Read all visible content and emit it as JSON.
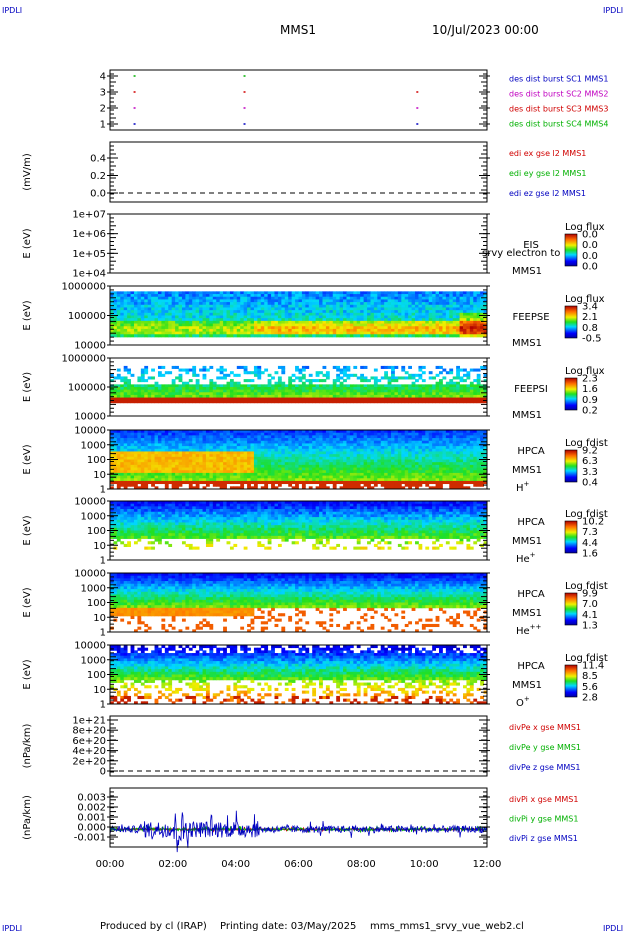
{
  "header": {
    "left_corner": "IPDLI",
    "right_corner": "IPDLI",
    "mission": "MMS1",
    "datetime": "10/Jul/2023 00:00"
  },
  "footer": {
    "left_corner": "IPDLI",
    "right_corner": "IPDLI",
    "credit": "Produced by cl (IRAP)",
    "print_label": "Printing date: 03/May/2025",
    "script": "mms_mms1_srvy_vue_web2.cl"
  },
  "colors": {
    "red": "#d00000",
    "green": "#00b000",
    "blue": "#0000c0",
    "magenta": "#c000c0"
  },
  "chart_data": [
    {
      "type": "scatter",
      "panel": "burst",
      "y_ticks": [
        "4",
        "3",
        "2",
        "1"
      ],
      "legend": [
        {
          "text": "des dist burst SC1 MMS1",
          "color": "#0000c0"
        },
        {
          "text": "des dist burst SC2 MMS2",
          "color": "#c000c0"
        },
        {
          "text": "des dist burst SC3 MMS3",
          "color": "#d00000"
        },
        {
          "text": "des dist burst SC4 MMS4",
          "color": "#00b000"
        }
      ],
      "burst_times": [
        "00:45",
        "04:15",
        "09:45"
      ]
    },
    {
      "type": "line",
      "panel": "edi",
      "ylabel": "(mV/m)",
      "y_ticks": [
        "0.4",
        "0.2",
        "0.0"
      ],
      "legend": [
        {
          "text": "edi ex gse l2 MMS1",
          "color": "#d00000"
        },
        {
          "text": "edi ey gse l2 MMS1",
          "color": "#00b000"
        },
        {
          "text": "edi ez gse l2 MMS1",
          "color": "#0000c0"
        }
      ]
    },
    {
      "type": "heatmap",
      "panel": "eis",
      "ylabel": "E (eV)",
      "y_ticks": [
        "1e+07",
        "1e+06",
        "1e+05",
        "1e+04"
      ],
      "labels": [
        "EIS",
        "MMS1"
      ],
      "overlay": "srvy electron to",
      "colorbar_title": "Log flux",
      "colorbar_values": [
        "0.0",
        "0.0",
        "0.0",
        "0.0"
      ]
    },
    {
      "type": "heatmap",
      "panel": "feepse",
      "ylabel": "E (eV)",
      "y_ticks": [
        "1000000",
        "100000",
        "10000"
      ],
      "labels": [
        "FEEPSE",
        "MMS1"
      ],
      "colorbar_title": "Log flux",
      "colorbar_values": [
        "3.4",
        "2.1",
        "0.8",
        "-0.5"
      ]
    },
    {
      "type": "heatmap",
      "panel": "feepsi",
      "ylabel": "E (eV)",
      "y_ticks": [
        "1000000",
        "100000",
        "10000"
      ],
      "labels": [
        "FEEPSI",
        "MMS1"
      ],
      "colorbar_title": "Log flux",
      "colorbar_values": [
        "2.3",
        "1.6",
        "0.9",
        "0.2"
      ]
    },
    {
      "type": "heatmap",
      "panel": "hpca_h",
      "ylabel": "E (eV)",
      "y_ticks": [
        "10000",
        "1000",
        "100",
        "10",
        "1"
      ],
      "labels": [
        "HPCA",
        "MMS1"
      ],
      "species": "H",
      "species_sup": "+",
      "colorbar_title": "Log fdist",
      "colorbar_values": [
        "9.2",
        "6.3",
        "3.3",
        "0.4"
      ]
    },
    {
      "type": "heatmap",
      "panel": "hpca_he",
      "ylabel": "E (eV)",
      "y_ticks": [
        "10000",
        "1000",
        "100",
        "10",
        "1"
      ],
      "labels": [
        "HPCA",
        "MMS1"
      ],
      "species": "He",
      "species_sup": "+",
      "colorbar_title": "Log fdist",
      "colorbar_values": [
        "10.2",
        "7.3",
        "4.4",
        "1.6"
      ]
    },
    {
      "type": "heatmap",
      "panel": "hpca_hepp",
      "ylabel": "E (eV)",
      "y_ticks": [
        "10000",
        "1000",
        "100",
        "10",
        "1"
      ],
      "labels": [
        "HPCA",
        "MMS1"
      ],
      "species": "He",
      "species_sup": "++",
      "colorbar_title": "Log fdist",
      "colorbar_values": [
        "9.9",
        "7.0",
        "4.1",
        "1.3"
      ]
    },
    {
      "type": "heatmap",
      "panel": "hpca_o",
      "ylabel": "E (eV)",
      "y_ticks": [
        "10000",
        "1000",
        "100",
        "10",
        "1"
      ],
      "labels": [
        "HPCA",
        "MMS1"
      ],
      "species": "O",
      "species_sup": "+",
      "colorbar_title": "Log fdist",
      "colorbar_values": [
        "11.4",
        "8.5",
        "5.6",
        "2.8"
      ]
    },
    {
      "type": "line",
      "panel": "divpe",
      "ylabel": "(nPa/km)",
      "y_ticks": [
        "1e+21",
        "8e+20",
        "6e+20",
        "4e+20",
        "2e+20",
        "0"
      ],
      "legend": [
        {
          "text": "divPe x gse MMS1",
          "color": "#d00000"
        },
        {
          "text": "divPe y gse MMS1",
          "color": "#00b000"
        },
        {
          "text": "divPe z gse MMS1",
          "color": "#0000c0"
        }
      ]
    },
    {
      "type": "line",
      "panel": "divpi",
      "ylabel": "(nPa/km)",
      "y_ticks": [
        "0.003",
        "0.002",
        "0.001",
        "0.000",
        "-0.001"
      ],
      "ylim": [
        -0.0015,
        0.0035
      ],
      "legend": [
        {
          "text": "divPi x gse MMS1",
          "color": "#d00000"
        },
        {
          "text": "divPi y gse MMS1",
          "color": "#00b000"
        },
        {
          "text": "divPi z gse MMS1",
          "color": "#0000c0"
        }
      ]
    }
  ],
  "x_axis": {
    "ticks": [
      "00:00",
      "02:00",
      "04:00",
      "06:00",
      "08:00",
      "10:00",
      "12:00"
    ]
  }
}
